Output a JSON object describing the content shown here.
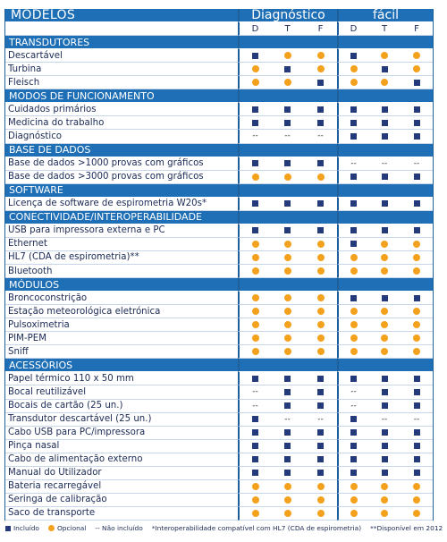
{
  "header": {
    "title": "MODELOS",
    "groups": [
      "Diagnóstico",
      "fácil"
    ],
    "columns": [
      "D",
      "T",
      "F",
      "D",
      "T",
      "F"
    ]
  },
  "sections": [
    {
      "title": "TRANSDUTORES",
      "rows": [
        {
          "label": "Descartável",
          "values": [
            "S",
            "O",
            "O",
            "S",
            "O",
            "O"
          ]
        },
        {
          "label": "Turbina",
          "values": [
            "O",
            "S",
            "O",
            "O",
            "S",
            "O"
          ]
        },
        {
          "label": "Fleisch",
          "values": [
            "O",
            "O",
            "S",
            "O",
            "O",
            "S"
          ]
        }
      ]
    },
    {
      "title": "MODOS DE FUNCIONAMENTO",
      "rows": [
        {
          "label": "Cuidados primários",
          "values": [
            "S",
            "S",
            "S",
            "S",
            "S",
            "S"
          ]
        },
        {
          "label": "Medicina do trabalho",
          "values": [
            "S",
            "S",
            "S",
            "S",
            "S",
            "S"
          ]
        },
        {
          "label": "Diagnóstico",
          "values": [
            "-",
            "-",
            "-",
            "S",
            "S",
            "S"
          ]
        }
      ]
    },
    {
      "title": "BASE DE DADOS",
      "rows": [
        {
          "label": "Base de dados >1000 provas com gráficos",
          "values": [
            "S",
            "S",
            "S",
            "-",
            "-",
            "-"
          ]
        },
        {
          "label": "Base de dados >3000 provas com gráficos",
          "values": [
            "O",
            "O",
            "O",
            "S",
            "S",
            "S"
          ]
        }
      ]
    },
    {
      "title": "SOFTWARE",
      "rows": [
        {
          "label": "Licença de software de espirometria W20s*",
          "values": [
            "S",
            "S",
            "S",
            "S",
            "S",
            "S"
          ]
        }
      ]
    },
    {
      "title": "CONECTIVIDADE/INTEROPERABILIDADE",
      "rows": [
        {
          "label": "USB para impressora externa e PC",
          "values": [
            "S",
            "S",
            "S",
            "S",
            "S",
            "S"
          ]
        },
        {
          "label": "Ethernet",
          "values": [
            "O",
            "O",
            "O",
            "S",
            "O",
            "O"
          ]
        },
        {
          "label": "HL7 (CDA de espirometria)**",
          "values": [
            "O",
            "O",
            "O",
            "O",
            "O",
            "O"
          ]
        },
        {
          "label": "Bluetooth",
          "values": [
            "O",
            "O",
            "O",
            "O",
            "O",
            "O"
          ]
        }
      ]
    },
    {
      "title": "MÓDULOS",
      "rows": [
        {
          "label": "Broncoconstrição",
          "values": [
            "O",
            "O",
            "O",
            "S",
            "S",
            "S"
          ]
        },
        {
          "label": "Estação meteorológica eletrónica",
          "values": [
            "O",
            "O",
            "O",
            "O",
            "O",
            "O"
          ]
        },
        {
          "label": "Pulsoximetria",
          "values": [
            "O",
            "O",
            "O",
            "O",
            "O",
            "O"
          ]
        },
        {
          "label": "PIM-PEM",
          "values": [
            "O",
            "O",
            "O",
            "O",
            "O",
            "O"
          ]
        },
        {
          "label": "Sniff",
          "values": [
            "O",
            "O",
            "O",
            "O",
            "O",
            "O"
          ]
        }
      ]
    },
    {
      "title": "ACESSÓRIOS",
      "rows": [
        {
          "label": "Papel térmico 110 x 50 mm",
          "values": [
            "S",
            "S",
            "S",
            "S",
            "S",
            "S"
          ]
        },
        {
          "label": "Bocal reutilizável",
          "values": [
            "-",
            "S",
            "S",
            "-",
            "S",
            "S"
          ]
        },
        {
          "label": "Bocais de cartão (25 un.)",
          "values": [
            "-",
            "S",
            "S",
            "-",
            "S",
            "S"
          ]
        },
        {
          "label": "Transdutor descartável (25 un.)",
          "values": [
            "S",
            "-",
            "-",
            "S",
            "-",
            "-"
          ]
        },
        {
          "label": "Cabo USB para PC/impressora",
          "values": [
            "S",
            "S",
            "S",
            "S",
            "S",
            "S"
          ]
        },
        {
          "label": "Pinça nasal",
          "values": [
            "S",
            "S",
            "S",
            "S",
            "S",
            "S"
          ]
        },
        {
          "label": "Cabo de alimentação externo",
          "values": [
            "S",
            "S",
            "S",
            "S",
            "S",
            "S"
          ]
        },
        {
          "label": "Manual do Utilizador",
          "values": [
            "S",
            "S",
            "S",
            "S",
            "S",
            "S"
          ]
        },
        {
          "label": "Bateria recarregável",
          "values": [
            "O",
            "O",
            "O",
            "O",
            "O",
            "O"
          ]
        },
        {
          "label": "Seringa de calibração",
          "values": [
            "O",
            "O",
            "O",
            "O",
            "O",
            "O"
          ]
        },
        {
          "label": "Saco de transporte",
          "values": [
            "O",
            "O",
            "O",
            "O",
            "O",
            "O"
          ]
        }
      ]
    }
  ],
  "legend": {
    "included": "Incluído",
    "optional": "Opcional",
    "not_included": "-- Não incluído",
    "note1": "*Interoperabilidade compatível com HL7 (CDA de espirometria)",
    "note2": "**Disponível em 2012"
  },
  "colors": {
    "header_blue": "#1f6fb6",
    "included_navy": "#243a7a",
    "optional_orange": "#f4a21d"
  }
}
